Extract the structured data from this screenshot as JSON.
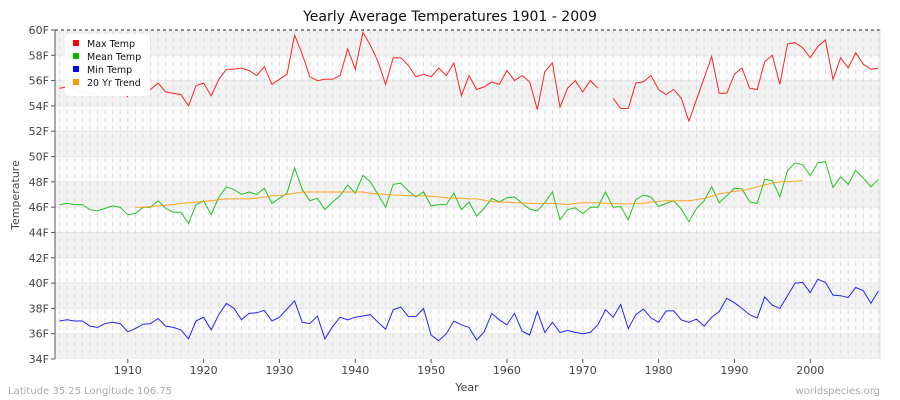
{
  "chart_data": {
    "type": "line",
    "title": "Yearly Average Temperatures 1901 - 2009",
    "xlabel": "Year",
    "ylabel": "Temperature",
    "xlim": [
      1900.4,
      2009.2
    ],
    "ylim": [
      34,
      60
    ],
    "y_ticks": [
      "34F",
      "36F",
      "38F",
      "40F",
      "42F",
      "44F",
      "46F",
      "48F",
      "50F",
      "52F",
      "54F",
      "56F",
      "58F",
      "60F"
    ],
    "x_ticks": [
      "1910",
      "1920",
      "1930",
      "1940",
      "1950",
      "1960",
      "1970",
      "1980",
      "1990",
      "2000"
    ],
    "grid": true,
    "legend_position": "top-left",
    "footer_left": "Latitude 35.25 Longitude 106.75",
    "footer_right": "worldspecies.org",
    "x_start": 1901,
    "series": [
      {
        "name": "Max Temp",
        "color": "#ff0000",
        "values": [
          55.4,
          55.5,
          55.3,
          55.1,
          55.0,
          54.9,
          55.2,
          55.4,
          55.7,
          54.7,
          null,
          55.2,
          55.3,
          55.8,
          55.1,
          55.0,
          54.9,
          54.0,
          55.6,
          55.8,
          54.8,
          56.1,
          56.9,
          56.9,
          57.0,
          56.8,
          56.4,
          57.1,
          55.7,
          56.1,
          56.5,
          59.6,
          58.1,
          56.3,
          56.0,
          56.1,
          56.1,
          56.4,
          58.5,
          56.9,
          59.8,
          58.8,
          57.5,
          55.7,
          57.8,
          57.8,
          57.2,
          56.3,
          56.5,
          56.3,
          57.0,
          56.4,
          57.4,
          54.8,
          56.4,
          55.3,
          55.5,
          55.9,
          55.7,
          56.8,
          56.0,
          56.4,
          55.9,
          53.7,
          56.7,
          57.4,
          53.9,
          55.4,
          56.0,
          55.1,
          56.0,
          55.4,
          null,
          54.6,
          53.8,
          53.8,
          55.8,
          55.9,
          56.4,
          55.3,
          54.9,
          55.3,
          54.6,
          52.8,
          54.5,
          56.2,
          57.9,
          55.0,
          55.0,
          56.5,
          57.0,
          55.4,
          55.3,
          57.5,
          58.0,
          55.7,
          58.9,
          59.0,
          58.6,
          57.8,
          58.7,
          59.2,
          56.1,
          57.8,
          57.0,
          58.2,
          57.3,
          56.9,
          57.0
        ]
      },
      {
        "name": "Mean Temp",
        "color": "#00bb00",
        "values": [
          46.2,
          46.3,
          46.2,
          46.2,
          45.8,
          45.7,
          45.9,
          46.1,
          46.0,
          45.4,
          45.5,
          46.0,
          46.0,
          46.5,
          45.9,
          45.6,
          45.6,
          44.7,
          46.2,
          46.5,
          45.4,
          46.8,
          47.6,
          47.4,
          47.0,
          47.2,
          47.0,
          47.5,
          46.3,
          46.7,
          47.1,
          49.1,
          47.4,
          46.5,
          46.7,
          45.8,
          46.4,
          46.9,
          47.75,
          47.1,
          48.5,
          48.0,
          47.0,
          46.0,
          47.8,
          47.9,
          47.3,
          46.8,
          47.2,
          46.1,
          46.2,
          46.2,
          47.1,
          45.8,
          46.4,
          45.3,
          45.9,
          46.7,
          46.4,
          46.75,
          46.8,
          46.3,
          45.85,
          45.7,
          46.35,
          47.2,
          45.0,
          45.8,
          45.95,
          45.5,
          46.0,
          46.0,
          47.2,
          46.0,
          46.05,
          45.0,
          46.6,
          46.95,
          46.8,
          46.05,
          46.3,
          46.5,
          45.85,
          44.85,
          45.9,
          46.5,
          47.6,
          46.35,
          46.9,
          47.5,
          47.45,
          46.4,
          46.3,
          48.2,
          48.1,
          46.8,
          48.9,
          49.5,
          49.35,
          48.5,
          49.5,
          49.6,
          47.55,
          48.4,
          47.8,
          48.9,
          48.3,
          47.6,
          48.2
        ]
      },
      {
        "name": "Min Temp",
        "color": "#0000ff",
        "values": [
          37.0,
          37.1,
          37.0,
          37.0,
          36.6,
          36.5,
          36.8,
          36.9,
          36.8,
          36.15,
          36.4,
          36.75,
          36.8,
          37.2,
          36.6,
          36.5,
          36.3,
          35.6,
          37.0,
          37.3,
          36.3,
          37.5,
          38.4,
          38.0,
          37.1,
          37.6,
          37.65,
          37.85,
          37.0,
          37.3,
          37.95,
          38.6,
          36.9,
          36.8,
          37.4,
          35.6,
          36.55,
          37.3,
          37.1,
          37.3,
          37.4,
          37.5,
          36.9,
          36.35,
          37.9,
          38.1,
          37.35,
          37.35,
          38.0,
          35.9,
          35.45,
          36.0,
          37.0,
          36.7,
          36.5,
          35.5,
          36.15,
          37.6,
          37.1,
          36.7,
          37.6,
          36.2,
          35.9,
          37.75,
          36.1,
          36.9,
          36.1,
          36.25,
          36.1,
          36.0,
          36.1,
          36.7,
          37.9,
          37.3,
          38.3,
          36.4,
          37.5,
          37.95,
          37.25,
          36.9,
          37.8,
          37.8,
          37.1,
          36.9,
          37.15,
          36.6,
          37.3,
          37.75,
          38.8,
          38.45,
          38.0,
          37.5,
          37.25,
          38.9,
          38.25,
          38.0,
          39.0,
          40.0,
          40.05,
          39.25,
          40.3,
          40.05,
          39.05,
          39.0,
          38.85,
          39.65,
          39.4,
          38.4,
          39.4
        ]
      },
      {
        "name": "20 Yr Trend",
        "color": "#ff9900",
        "x_start": 1911,
        "values": [
          46.0,
          46.0,
          46.05,
          46.1,
          46.15,
          46.2,
          46.3,
          46.35,
          46.4,
          46.45,
          46.5,
          46.6,
          46.65,
          46.65,
          46.65,
          46.65,
          46.7,
          46.8,
          46.9,
          46.9,
          47.0,
          47.1,
          47.2,
          47.2,
          47.2,
          47.2,
          47.2,
          47.2,
          47.2,
          47.2,
          47.2,
          47.1,
          47.05,
          47.0,
          46.95,
          46.95,
          46.9,
          46.9,
          46.9,
          46.85,
          46.8,
          46.75,
          46.7,
          46.7,
          46.65,
          46.65,
          46.55,
          46.45,
          46.4,
          46.4,
          46.35,
          46.35,
          46.3,
          46.3,
          46.3,
          46.3,
          46.25,
          46.2,
          46.3,
          46.35,
          46.35,
          46.35,
          46.3,
          46.3,
          46.25,
          46.25,
          46.3,
          46.3,
          46.4,
          46.45,
          46.5,
          46.5,
          46.5,
          46.5,
          46.6,
          46.7,
          46.85,
          47.05,
          47.15,
          47.25,
          47.3,
          47.45,
          47.6,
          47.75,
          47.9,
          48.0,
          48.0,
          48.05,
          48.1
        ]
      }
    ]
  }
}
